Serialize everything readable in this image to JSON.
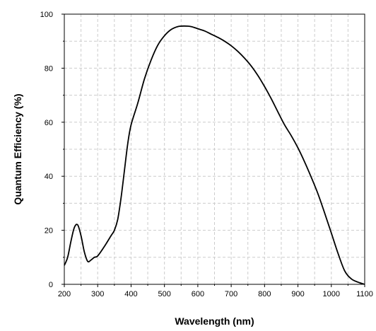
{
  "chart_data": {
    "type": "line",
    "title": "",
    "xlabel": "Wavelength (nm)",
    "ylabel": "Quantum Efficiency (%)",
    "xlim": [
      200,
      1100
    ],
    "ylim": [
      0,
      100
    ],
    "x_ticks": [
      200,
      300,
      400,
      500,
      600,
      700,
      800,
      900,
      1000,
      1100
    ],
    "y_ticks": [
      0,
      20,
      40,
      60,
      80,
      100
    ],
    "grid": true,
    "grid_style": "dashed",
    "legend": "none",
    "line_color": "#000000",
    "grid_color": "#cccccc",
    "series": [
      {
        "x": [
          200,
          210,
          220,
          230,
          240,
          250,
          260,
          270,
          280,
          290,
          300,
          320,
          340,
          350,
          360,
          370,
          380,
          390,
          400,
          420,
          440,
          460,
          480,
          500,
          520,
          540,
          560,
          580,
          600,
          620,
          640,
          660,
          680,
          700,
          720,
          740,
          760,
          780,
          800,
          820,
          840,
          860,
          880,
          900,
          920,
          940,
          960,
          980,
          1000,
          1020,
          1040,
          1060,
          1080,
          1100
        ],
        "y": [
          7,
          10,
          16,
          21,
          22,
          18,
          12,
          8.5,
          9,
          10,
          10.5,
          14,
          18,
          20,
          24,
          32,
          42,
          52,
          59,
          67,
          76,
          83,
          88.5,
          92,
          94.3,
          95.4,
          95.6,
          95.4,
          94.6,
          93.8,
          92.6,
          91.4,
          90,
          88.3,
          86.2,
          83.7,
          80.8,
          77.3,
          73.2,
          68.7,
          63.8,
          59,
          55,
          50.5,
          45.3,
          39.6,
          33.5,
          26.4,
          19,
          11.5,
          5,
          2,
          0.8,
          0
        ]
      }
    ]
  }
}
